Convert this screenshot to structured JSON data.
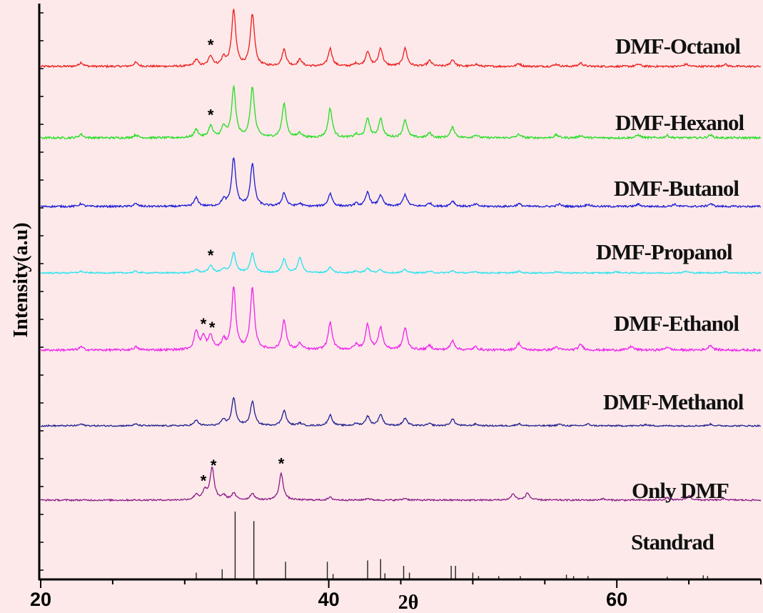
{
  "chart_data": {
    "type": "line",
    "xlabel": "2θ",
    "ylabel": "Intensity(a.u)",
    "xlim": [
      20,
      70
    ],
    "x_ticks": [
      "20",
      "40",
      "60"
    ],
    "x_tick_values": [
      20,
      40,
      60
    ],
    "grid": false,
    "star_marker": "*",
    "series": [
      {
        "name": "DMF-Octanol",
        "color": "#ee1c1c",
        "peaks": [
          [
            22.8,
            0.07
          ],
          [
            26.6,
            0.07
          ],
          [
            30.8,
            0.12
          ],
          [
            31.8,
            0.19
          ],
          [
            32.7,
            0.15
          ],
          [
            33.4,
            1.0
          ],
          [
            34.7,
            0.93
          ],
          [
            36.9,
            0.3
          ],
          [
            38.0,
            0.12
          ],
          [
            40.1,
            0.32
          ],
          [
            41.9,
            0.05
          ],
          [
            42.7,
            0.27
          ],
          [
            43.6,
            0.32
          ],
          [
            45.3,
            0.32
          ],
          [
            47.0,
            0.1
          ],
          [
            48.6,
            0.12
          ],
          [
            50.2,
            0.04
          ],
          [
            53.2,
            0.05
          ],
          [
            55.8,
            0.04
          ],
          [
            57.5,
            0.06
          ],
          [
            61.5,
            0.04
          ],
          [
            64.8,
            0.04
          ],
          [
            67.5,
            0.04
          ]
        ],
        "stars": [
          [
            31.8,
            "*"
          ]
        ]
      },
      {
        "name": "DMF-Hexanol",
        "color": "#22dd22",
        "peaks": [
          [
            22.8,
            0.06
          ],
          [
            26.6,
            0.05
          ],
          [
            30.8,
            0.14
          ],
          [
            31.8,
            0.2
          ],
          [
            32.7,
            0.18
          ],
          [
            33.4,
            0.85
          ],
          [
            34.7,
            0.85
          ],
          [
            36.9,
            0.58
          ],
          [
            38.0,
            0.08
          ],
          [
            40.1,
            0.5
          ],
          [
            41.9,
            0.05
          ],
          [
            42.7,
            0.33
          ],
          [
            43.6,
            0.32
          ],
          [
            45.3,
            0.31
          ],
          [
            47.0,
            0.08
          ],
          [
            48.6,
            0.18
          ],
          [
            50.2,
            0.05
          ],
          [
            53.2,
            0.06
          ],
          [
            55.8,
            0.05
          ],
          [
            57.5,
            0.04
          ],
          [
            61.5,
            0.05
          ],
          [
            63.5,
            0.04
          ],
          [
            66.5,
            0.05
          ]
        ],
        "stars": [
          [
            31.8,
            "*"
          ]
        ]
      },
      {
        "name": "DMF-Butanol",
        "color": "#1a1ad6",
        "peaks": [
          [
            22.8,
            0.05
          ],
          [
            26.6,
            0.05
          ],
          [
            30.8,
            0.16
          ],
          [
            32.7,
            0.12
          ],
          [
            33.4,
            0.9
          ],
          [
            34.7,
            0.78
          ],
          [
            36.9,
            0.25
          ],
          [
            38.0,
            0.05
          ],
          [
            40.1,
            0.24
          ],
          [
            41.9,
            0.05
          ],
          [
            42.7,
            0.26
          ],
          [
            43.6,
            0.21
          ],
          [
            45.3,
            0.22
          ],
          [
            47.0,
            0.06
          ],
          [
            48.6,
            0.1
          ],
          [
            50.2,
            0.04
          ],
          [
            53.2,
            0.05
          ],
          [
            56.0,
            0.04
          ],
          [
            58.0,
            0.04
          ],
          [
            61.5,
            0.04
          ],
          [
            64.0,
            0.04
          ],
          [
            66.5,
            0.05
          ]
        ],
        "stars": []
      },
      {
        "name": "DMF-Propanol",
        "color": "#22e4f0",
        "peaks": [
          [
            22.8,
            0.04
          ],
          [
            26.6,
            0.04
          ],
          [
            30.8,
            0.08
          ],
          [
            31.8,
            0.19
          ],
          [
            32.7,
            0.09
          ],
          [
            33.4,
            0.52
          ],
          [
            34.7,
            0.49
          ],
          [
            36.9,
            0.35
          ],
          [
            38.0,
            0.39
          ],
          [
            40.1,
            0.14
          ],
          [
            41.9,
            0.05
          ],
          [
            42.7,
            0.12
          ],
          [
            43.6,
            0.08
          ],
          [
            45.3,
            0.08
          ],
          [
            47.0,
            0.04
          ],
          [
            48.6,
            0.05
          ],
          [
            50.2,
            0.03
          ],
          [
            53.2,
            0.04
          ],
          [
            55.8,
            0.03
          ],
          [
            60.0,
            0.03
          ],
          [
            64.8,
            0.04
          ],
          [
            67.5,
            0.03
          ]
        ],
        "stars": [
          [
            31.8,
            "*"
          ]
        ]
      },
      {
        "name": "DMF-Ethanol",
        "color": "#ee22ee",
        "peaks": [
          [
            22.8,
            0.05
          ],
          [
            26.6,
            0.05
          ],
          [
            30.8,
            0.3
          ],
          [
            31.3,
            0.2
          ],
          [
            31.8,
            0.22
          ],
          [
            32.7,
            0.14
          ],
          [
            33.4,
            1.0
          ],
          [
            34.7,
            0.98
          ],
          [
            36.9,
            0.48
          ],
          [
            38.0,
            0.1
          ],
          [
            40.1,
            0.44
          ],
          [
            41.9,
            0.08
          ],
          [
            42.7,
            0.41
          ],
          [
            43.6,
            0.36
          ],
          [
            45.3,
            0.35
          ],
          [
            47.0,
            0.07
          ],
          [
            48.6,
            0.15
          ],
          [
            50.2,
            0.05
          ],
          [
            53.2,
            0.11
          ],
          [
            55.8,
            0.05
          ],
          [
            57.5,
            0.09
          ],
          [
            61.0,
            0.06
          ],
          [
            63.5,
            0.05
          ],
          [
            66.5,
            0.08
          ]
        ],
        "stars": [
          [
            31.3,
            "*"
          ],
          [
            31.9,
            "*"
          ]
        ]
      },
      {
        "name": "DMF-Methanol",
        "color": "#202090",
        "peaks": [
          [
            22.8,
            0.04
          ],
          [
            26.6,
            0.04
          ],
          [
            30.8,
            0.13
          ],
          [
            32.7,
            0.14
          ],
          [
            33.4,
            0.66
          ],
          [
            34.7,
            0.58
          ],
          [
            36.9,
            0.37
          ],
          [
            38.0,
            0.06
          ],
          [
            40.1,
            0.26
          ],
          [
            41.9,
            0.05
          ],
          [
            42.7,
            0.23
          ],
          [
            43.6,
            0.27
          ],
          [
            45.3,
            0.18
          ],
          [
            47.0,
            0.05
          ],
          [
            48.6,
            0.16
          ],
          [
            50.2,
            0.04
          ],
          [
            53.2,
            0.05
          ],
          [
            56.0,
            0.04
          ],
          [
            58.0,
            0.04
          ],
          [
            62.0,
            0.03
          ],
          [
            66.5,
            0.04
          ]
        ],
        "stars": []
      },
      {
        "name": "Only DMF",
        "color": "#8a1a8a",
        "peaks": [
          [
            30.8,
            0.12
          ],
          [
            31.4,
            0.2
          ],
          [
            31.9,
            0.72
          ],
          [
            32.7,
            0.1
          ],
          [
            33.4,
            0.15
          ],
          [
            34.7,
            0.15
          ],
          [
            36.7,
            0.6
          ],
          [
            40.1,
            0.06
          ],
          [
            42.7,
            0.04
          ],
          [
            45.3,
            0.04
          ],
          [
            52.8,
            0.14
          ],
          [
            53.8,
            0.16
          ],
          [
            59.0,
            0.03
          ],
          [
            63.5,
            0.05
          ],
          [
            65.0,
            0.1
          ],
          [
            67.5,
            0.03
          ]
        ],
        "stars": [
          [
            31.3,
            "*"
          ],
          [
            32.0,
            "*"
          ],
          [
            36.7,
            "*"
          ]
        ]
      }
    ],
    "reference": {
      "name": "Standrad",
      "color": "#222222",
      "lines": [
        [
          30.8,
          0.1
        ],
        [
          32.6,
          0.15
        ],
        [
          33.5,
          1.0
        ],
        [
          34.8,
          0.86
        ],
        [
          37.0,
          0.26
        ],
        [
          39.9,
          0.26
        ],
        [
          40.3,
          0.08
        ],
        [
          42.7,
          0.28
        ],
        [
          43.6,
          0.3
        ],
        [
          43.9,
          0.09
        ],
        [
          45.2,
          0.2
        ],
        [
          45.6,
          0.1
        ],
        [
          48.5,
          0.2
        ],
        [
          48.8,
          0.2
        ],
        [
          50.0,
          0.1
        ],
        [
          50.4,
          0.05
        ],
        [
          51.8,
          0.05
        ],
        [
          53.3,
          0.05
        ],
        [
          56.5,
          0.07
        ],
        [
          57.0,
          0.05
        ],
        [
          58.0,
          0.05
        ],
        [
          63.5,
          0.04
        ],
        [
          66.0,
          0.06
        ],
        [
          66.3,
          0.05
        ]
      ]
    }
  }
}
